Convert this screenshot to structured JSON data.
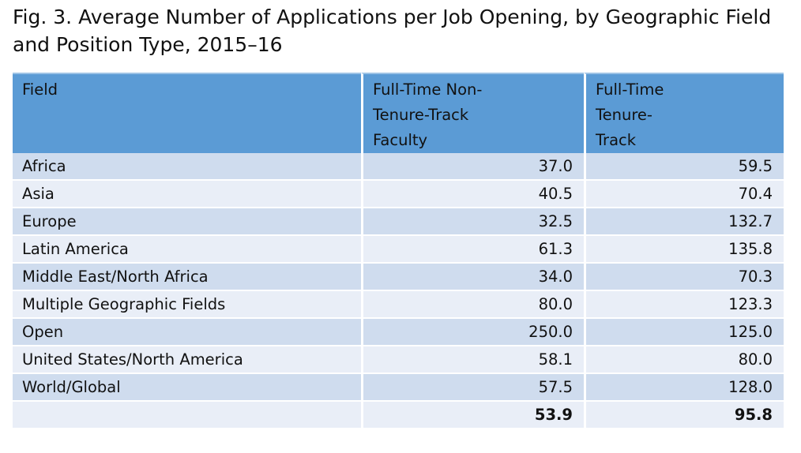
{
  "chart_data": {
    "type": "table",
    "title": "Fig. 3. Average Number of Applications per Job Opening, by Geographic Field and Position Type, 2015–16",
    "columns": [
      "Field",
      "Full-Time Non-Tenure-Track Faculty",
      "Full-Time Tenure-Track"
    ],
    "column_lines": [
      [
        "Field"
      ],
      [
        "Full-Time Non-",
        "Tenure-Track",
        "Faculty"
      ],
      [
        "Full-Time",
        "Tenure-",
        "Track"
      ]
    ],
    "rows": [
      {
        "field": "Africa",
        "ntt": "37.0",
        "tt": "59.5"
      },
      {
        "field": "Asia",
        "ntt": "40.5",
        "tt": "70.4"
      },
      {
        "field": "Europe",
        "ntt": "32.5",
        "tt": "132.7"
      },
      {
        "field": "Latin America",
        "ntt": "61.3",
        "tt": "135.8"
      },
      {
        "field": "Middle East/North Africa",
        "ntt": "34.0",
        "tt": "70.3"
      },
      {
        "field": "Multiple Geographic Fields",
        "ntt": "80.0",
        "tt": "123.3"
      },
      {
        "field": "Open",
        "ntt": "250.0",
        "tt": "125.0"
      },
      {
        "field": "United States/North America",
        "ntt": "58.1",
        "tt": "80.0"
      },
      {
        "field": "World/Global",
        "ntt": "57.5",
        "tt": "128.0"
      }
    ],
    "total": {
      "field": "",
      "ntt": "53.9",
      "tt": "95.8"
    },
    "colors": {
      "header": "#5b9bd5",
      "row_odd": "#cfdcee",
      "row_even": "#e9eef7"
    }
  }
}
